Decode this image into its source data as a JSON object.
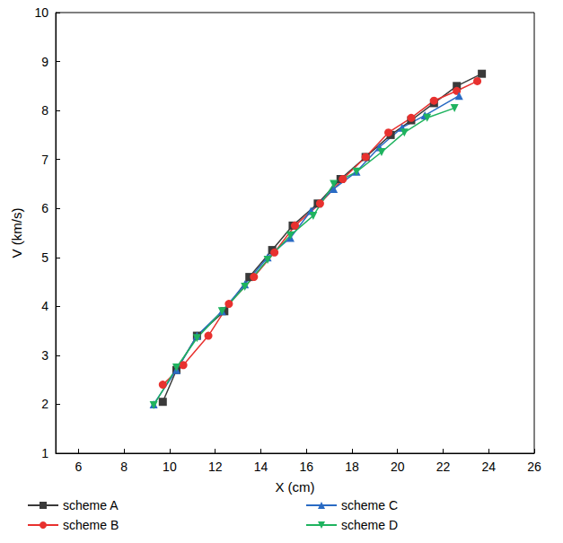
{
  "chart_data": {
    "type": "line",
    "x_label": "X (cm)",
    "y_label": "V (km/s)",
    "xlim": [
      5,
      26
    ],
    "xticks": [
      6,
      8,
      10,
      12,
      14,
      16,
      18,
      20,
      22,
      24,
      26
    ],
    "ylim": [
      1,
      10
    ],
    "yticks": [
      1,
      2,
      3,
      4,
      5,
      6,
      7,
      8,
      9,
      10
    ],
    "legend": "bottom",
    "series": [
      {
        "name": "scheme A",
        "color": "#3a3a3a",
        "marker": "square",
        "x": [
          9.7,
          10.3,
          11.2,
          12.4,
          13.5,
          14.5,
          15.4,
          16.5,
          17.5,
          18.6,
          19.7,
          20.6,
          21.6,
          22.6,
          23.7
        ],
        "values": [
          2.05,
          2.7,
          3.4,
          3.9,
          4.6,
          5.15,
          5.65,
          6.1,
          6.6,
          7.05,
          7.5,
          7.8,
          8.15,
          8.5,
          8.75
        ]
      },
      {
        "name": "scheme B",
        "color": "#e8312f",
        "marker": "circle",
        "x": [
          9.7,
          10.6,
          11.7,
          12.6,
          13.7,
          14.6,
          15.5,
          16.6,
          17.6,
          18.6,
          19.6,
          20.6,
          21.6,
          22.6,
          23.5
        ],
        "values": [
          2.4,
          2.8,
          3.4,
          4.05,
          4.6,
          5.1,
          5.65,
          6.1,
          6.6,
          7.05,
          7.55,
          7.85,
          8.2,
          8.4,
          8.6
        ]
      },
      {
        "name": "scheme C",
        "color": "#2a6bc4",
        "marker": "triangle",
        "x": [
          9.3,
          10.3,
          11.2,
          12.3,
          13.3,
          14.3,
          15.3,
          16.2,
          17.2,
          18.2,
          19.2,
          20.2,
          21.2,
          22.7
        ],
        "values": [
          2.0,
          2.7,
          3.4,
          3.9,
          4.45,
          5.0,
          5.4,
          5.95,
          6.4,
          6.75,
          7.25,
          7.65,
          7.9,
          8.3
        ]
      },
      {
        "name": "scheme D",
        "color": "#1fb35f",
        "marker": "triangle_down",
        "x": [
          9.3,
          10.3,
          11.2,
          12.3,
          13.3,
          14.3,
          15.3,
          16.3,
          17.2,
          18.2,
          19.3,
          20.3,
          21.3,
          22.5
        ],
        "values": [
          1.98,
          2.75,
          3.35,
          3.9,
          4.4,
          4.95,
          5.45,
          5.85,
          6.5,
          6.75,
          7.15,
          7.55,
          7.85,
          8.05
        ]
      }
    ]
  }
}
